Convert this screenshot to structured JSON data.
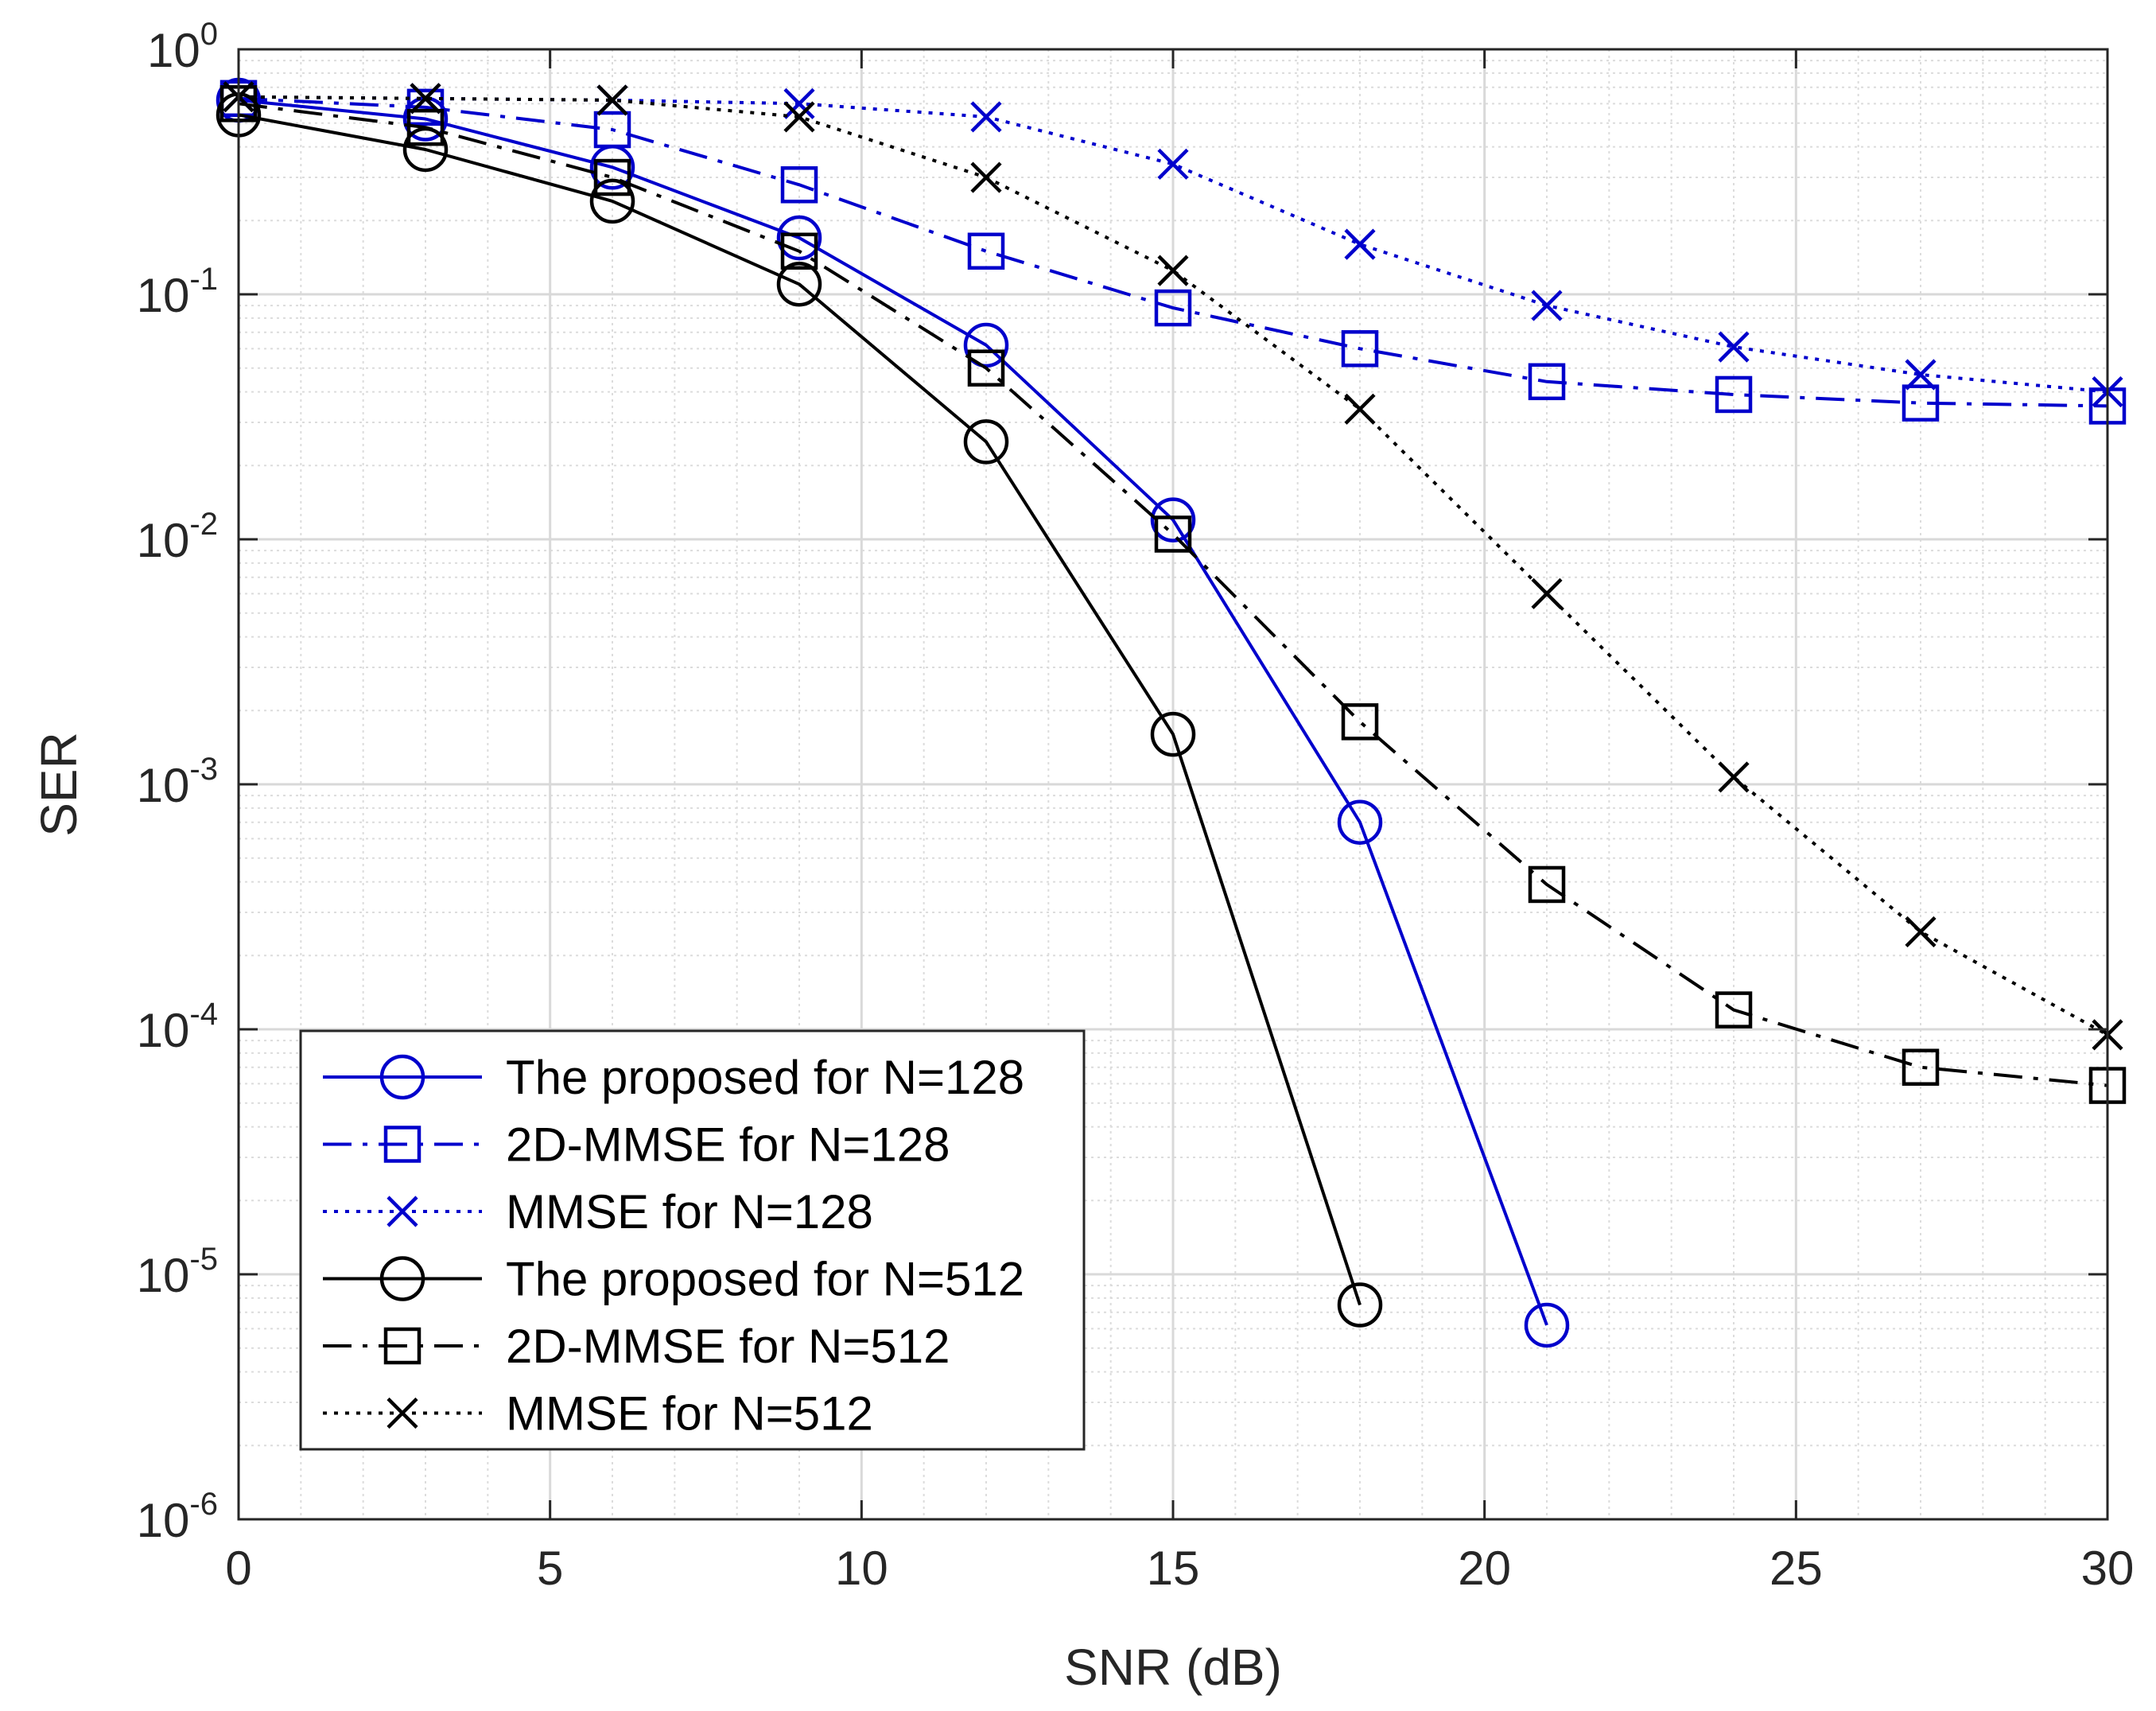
{
  "chart_data": {
    "type": "line",
    "title": "",
    "xlabel": "SNR (dB)",
    "ylabel": "SER",
    "xlim": [
      0,
      30
    ],
    "ylim": [
      1e-06,
      1
    ],
    "yscale": "log",
    "grid": true,
    "minor_grid": true,
    "legend_position": "bottom-left",
    "x_ticks": [
      0,
      5,
      10,
      15,
      20,
      25,
      30
    ],
    "x_tick_labels": [
      "0",
      "5",
      "10",
      "15",
      "20",
      "25",
      "30"
    ],
    "y_ticks": [
      {
        "value": 1e-06,
        "base": "10",
        "exponent": "-6"
      },
      {
        "value": 1e-05,
        "base": "10",
        "exponent": "-5"
      },
      {
        "value": 0.0001,
        "base": "10",
        "exponent": "-4"
      },
      {
        "value": 0.001,
        "base": "10",
        "exponent": "-3"
      },
      {
        "value": 0.01,
        "base": "10",
        "exponent": "-2"
      },
      {
        "value": 0.1,
        "base": "10",
        "exponent": "-1"
      },
      {
        "value": 1,
        "base": "10",
        "exponent": "0"
      }
    ],
    "series": [
      {
        "name": "The proposed for N=128",
        "color": "#0000cc",
        "line": "solid",
        "marker": "circle",
        "x": [
          0,
          3,
          6,
          9,
          12,
          15,
          18,
          21
        ],
        "y": [
          0.62,
          0.52,
          0.33,
          0.17,
          0.062,
          0.012,
          0.0007,
          6.2e-06
        ]
      },
      {
        "name": "2D-MMSE for N=128",
        "color": "#0000cc",
        "line": "dashdot",
        "marker": "square",
        "x": [
          0,
          3,
          6,
          9,
          12,
          15,
          18,
          21,
          24,
          27,
          30
        ],
        "y": [
          0.63,
          0.58,
          0.47,
          0.28,
          0.15,
          0.088,
          0.06,
          0.044,
          0.039,
          0.036,
          0.035
        ]
      },
      {
        "name": "MMSE for N=128",
        "color": "#0000cc",
        "line": "dotted",
        "marker": "x",
        "x": [
          0,
          3,
          6,
          9,
          12,
          15,
          18,
          21,
          24,
          27,
          30
        ],
        "y": [
          0.64,
          0.63,
          0.62,
          0.6,
          0.53,
          0.34,
          0.16,
          0.09,
          0.061,
          0.047,
          0.04
        ]
      },
      {
        "name": "The proposed for N=512",
        "color": "#000000",
        "line": "solid",
        "marker": "circle",
        "x": [
          0,
          3,
          6,
          9,
          12,
          15,
          18
        ],
        "y": [
          0.54,
          0.39,
          0.24,
          0.11,
          0.025,
          0.0016,
          7.5e-06
        ]
      },
      {
        "name": "2D-MMSE for N=512",
        "color": "#000000",
        "line": "dashdot",
        "marker": "square",
        "x": [
          0,
          3,
          6,
          9,
          12,
          15,
          18,
          21,
          24,
          27,
          30
        ],
        "y": [
          0.6,
          0.48,
          0.3,
          0.15,
          0.05,
          0.0105,
          0.0018,
          0.00039,
          0.00012,
          7e-05,
          5.9e-05
        ]
      },
      {
        "name": "MMSE for N=512",
        "color": "#000000",
        "line": "dotted",
        "marker": "x",
        "x": [
          0,
          3,
          6,
          9,
          12,
          15,
          18,
          21,
          24,
          27,
          30
        ],
        "y": [
          0.64,
          0.63,
          0.62,
          0.53,
          0.3,
          0.125,
          0.034,
          0.006,
          0.00107,
          0.00025,
          9.5e-05
        ]
      }
    ]
  }
}
